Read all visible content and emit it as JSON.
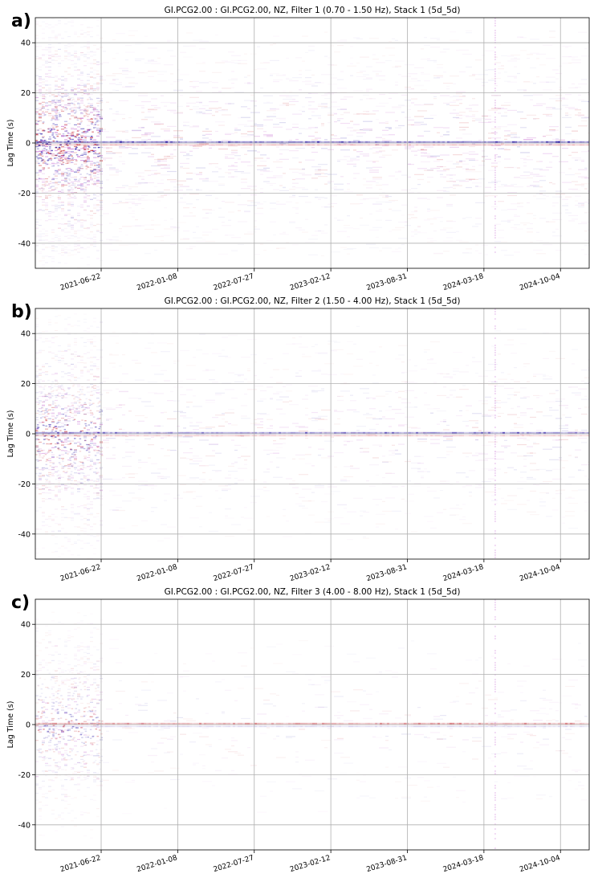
{
  "chart_data": [
    {
      "type": "heatmap",
      "panel_label": "a)",
      "title": "GI.PCG2.00 : GI.PCG2.00, NZ, Filter 1 (0.70 - 1.50 Hz), Stack 1 (5d_5d)",
      "xlabel": "",
      "ylabel": "Lag Time (s)",
      "x_tick_labels": [
        "2021-06-22",
        "2022-01-08",
        "2022-07-27",
        "2023-02-12",
        "2023-08-31",
        "2024-03-18",
        "2024-10-04"
      ],
      "y_ticks": [
        40,
        20,
        0,
        -20,
        -40
      ],
      "ylim": [
        -50,
        50
      ],
      "xlim": [
        "2021-01-01",
        "2024-12-18"
      ],
      "grid": true,
      "colormap": "seismic",
      "colors": {
        "positive": "#c0131c",
        "negative": "#2b1aa8",
        "zero": "#ffffff",
        "grid": "#b0b0b0",
        "mixed": "#b23cc2"
      },
      "early_noise_until": "2021-06-22",
      "intensity": 1.0,
      "scatter": 0.55
    },
    {
      "type": "heatmap",
      "panel_label": "b)",
      "title": "GI.PCG2.00 : GI.PCG2.00, NZ, Filter 2 (1.50 - 4.00 Hz), Stack 1 (5d_5d)",
      "xlabel": "",
      "ylabel": "Lag Time (s)",
      "x_tick_labels": [
        "2021-06-22",
        "2022-01-08",
        "2022-07-27",
        "2023-02-12",
        "2023-08-31",
        "2024-03-18",
        "2024-10-04"
      ],
      "y_ticks": [
        40,
        20,
        0,
        -20,
        -40
      ],
      "ylim": [
        -50,
        50
      ],
      "xlim": [
        "2021-01-01",
        "2024-12-18"
      ],
      "grid": true,
      "colormap": "seismic",
      "colors": {
        "positive": "#c0131c",
        "negative": "#2b1aa8",
        "zero": "#ffffff",
        "grid": "#b0b0b0",
        "mixed": "#b23cc2"
      },
      "early_noise_until": "2021-06-22",
      "intensity": 0.75,
      "scatter": 0.4
    },
    {
      "type": "heatmap",
      "panel_label": "c)",
      "title": "GI.PCG2.00 : GI.PCG2.00, NZ, Filter 3 (4.00 - 8.00 Hz), Stack 1 (5d_5d)",
      "xlabel": "",
      "ylabel": "Lag Time (s)",
      "x_tick_labels": [
        "2021-06-22",
        "2022-01-08",
        "2022-07-27",
        "2023-02-12",
        "2023-08-31",
        "2024-03-18",
        "2024-10-04"
      ],
      "y_ticks": [
        40,
        20,
        0,
        -20,
        -40
      ],
      "ylim": [
        -50,
        50
      ],
      "xlim": [
        "2021-01-01",
        "2024-12-18"
      ],
      "grid": true,
      "colormap": "seismic",
      "colors": {
        "positive": "#c0131c",
        "negative": "#2b1aa8",
        "zero": "#ffffff",
        "grid": "#b0b0b0",
        "mixed": "#b23cc2"
      },
      "early_noise_until": "2021-06-22",
      "intensity": 0.55,
      "scatter": 0.18
    }
  ]
}
